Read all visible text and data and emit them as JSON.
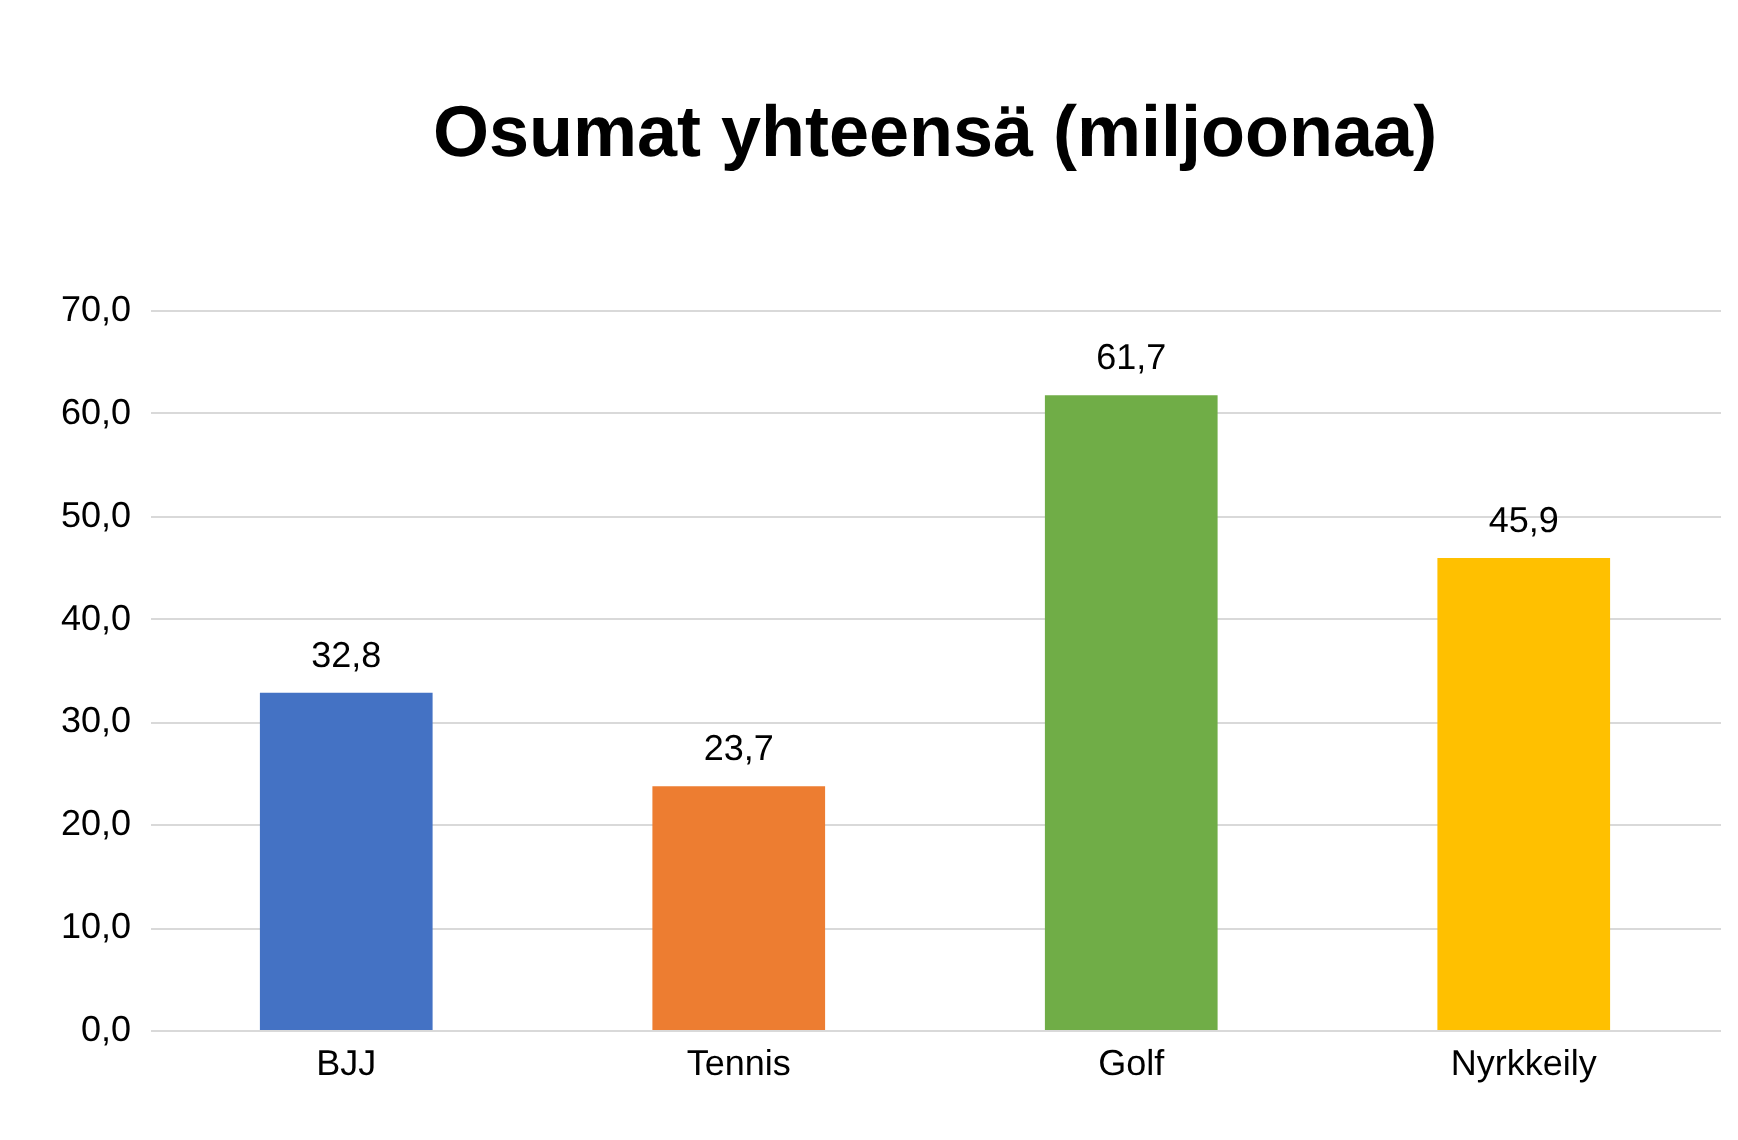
{
  "chart_data": {
    "type": "bar",
    "title": "Osumat yhteensä (miljoonaa)",
    "categories": [
      "BJJ",
      "Tennis",
      "Golf",
      "Nyrkkeily"
    ],
    "values": [
      32.8,
      23.7,
      61.7,
      45.9
    ],
    "colors": [
      "#4472c4",
      "#ed7d31",
      "#70ad47",
      "#ffc000"
    ],
    "value_labels": [
      "32,8",
      "23,7",
      "61,7",
      "45,9"
    ],
    "ylim": [
      0,
      70
    ],
    "yticks": [
      {
        "value": 0,
        "label": "0,0"
      },
      {
        "value": 10,
        "label": "10,0"
      },
      {
        "value": 20,
        "label": "20,0"
      },
      {
        "value": 30,
        "label": "30,0"
      },
      {
        "value": 40,
        "label": "40,0"
      },
      {
        "value": 50,
        "label": "50,0"
      },
      {
        "value": 60,
        "label": "60,0"
      },
      {
        "value": 70,
        "label": "70,0"
      }
    ],
    "grid": "y"
  }
}
